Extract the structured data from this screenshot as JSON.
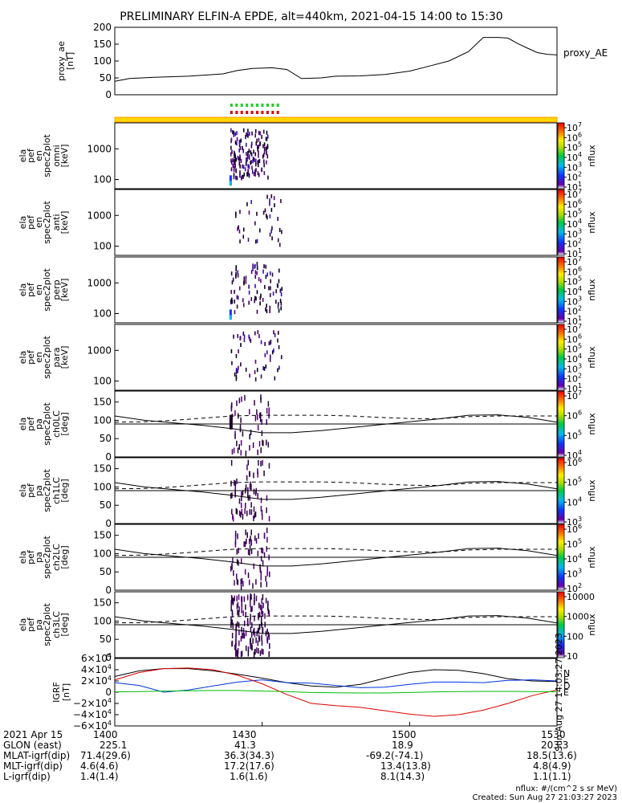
{
  "title": "PRELIMINARY ELFIN-A EPDE, alt=440km, 2021-04-15 14:00 to 15:30",
  "time_axis": {
    "start_minutes": 0,
    "end_minutes": 90
  },
  "proxy_ae": {
    "ylabel_lines": [
      "proxy_ae",
      "[nT]"
    ],
    "legend": "proxy_AE",
    "yticks": [
      "0",
      "50",
      "100",
      "150",
      "200"
    ],
    "ylim": [
      0,
      200
    ]
  },
  "science_flags": {
    "green": "#22cc22",
    "red": "#dd0000",
    "bar": "#ffd700",
    "bar_edge": "#ff8800"
  },
  "spectro_panels": [
    {
      "label_lines": [
        "ela",
        "pef",
        "en",
        "spec2plot",
        "omni",
        "[keV]"
      ],
      "yticks": [
        "100",
        "1000"
      ],
      "cbar_ticks": [
        "10^7",
        "10^6",
        "10^5",
        "10^4",
        "10^3",
        "10^2",
        "10^1"
      ],
      "cbar_label": "nflux"
    },
    {
      "label_lines": [
        "ela",
        "pef",
        "en",
        "spec2plot",
        "anti",
        "[keV]"
      ],
      "yticks": [
        "100",
        "1000"
      ],
      "cbar_ticks": [
        "10^7",
        "10^6",
        "10^5",
        "10^4",
        "10^3",
        "10^2",
        "10^1"
      ],
      "cbar_label": "nflux"
    },
    {
      "label_lines": [
        "ela",
        "pef",
        "en",
        "spec2plot",
        "perp",
        "[keV]"
      ],
      "yticks": [
        "100",
        "1000"
      ],
      "cbar_ticks": [
        "10^7",
        "10^6",
        "10^5",
        "10^4",
        "10^3",
        "10^2",
        "10^1"
      ],
      "cbar_label": "nflux"
    },
    {
      "label_lines": [
        "ela",
        "pef",
        "en",
        "spec2plot",
        "para",
        "[keV]"
      ],
      "yticks": [
        "100",
        "1000"
      ],
      "cbar_ticks": [
        "10^7",
        "10^6",
        "10^5",
        "10^4",
        "10^3",
        "10^2",
        "10^1"
      ],
      "cbar_label": "nflux"
    }
  ],
  "pa_panels": [
    {
      "label_lines": [
        "ela",
        "pef",
        "pa",
        "spec2plot",
        "ch0LC",
        "[deg]"
      ],
      "yticks": [
        "0",
        "50",
        "100",
        "150"
      ],
      "cbar_ticks": [
        "10^7",
        "10^6",
        "10^5",
        "10^4"
      ],
      "cbar_label": "nflux"
    },
    {
      "label_lines": [
        "ela",
        "pef",
        "pa",
        "spec2plot",
        "ch1LC",
        "[deg]"
      ],
      "yticks": [
        "0",
        "50",
        "100",
        "150"
      ],
      "cbar_ticks": [
        "10^6",
        "10^5",
        "10^4",
        "10^3"
      ],
      "cbar_label": "nflux"
    },
    {
      "label_lines": [
        "ela",
        "pef",
        "pa",
        "spec2plot",
        "ch2LC",
        "[deg]"
      ],
      "yticks": [
        "0",
        "50",
        "100",
        "150"
      ],
      "cbar_ticks": [
        "10^6",
        "10^5",
        "10^4",
        "10^3",
        "10^2"
      ],
      "cbar_label": "nflux"
    },
    {
      "label_lines": [
        "ela",
        "pef",
        "pa",
        "spec2plot",
        "ch3LC",
        "[deg]"
      ],
      "yticks": [
        "0",
        "50",
        "100",
        "150"
      ],
      "cbar_ticks": [
        "10000",
        "1000",
        "100",
        "10"
      ],
      "cbar_label": "nflux"
    }
  ],
  "igrf_panel": {
    "label_lines": [
      "IGRF",
      "[nT]"
    ],
    "yticks": [
      "6×10^4",
      "4×10^4",
      "2×10^4",
      "0",
      "−2×10^4",
      "−4×10^4",
      "−6×10^4"
    ],
    "legend": [
      "N",
      "E",
      "D",
      "E"
    ],
    "timestamp": "Sun Aug 27 14:03:27 2023"
  },
  "footer": {
    "rows": [
      {
        "label": "2021 Apr 15",
        "values": [
          "1400",
          "1430",
          "1500",
          "1530"
        ]
      },
      {
        "label": "GLON (east)",
        "values": [
          "225.1",
          "41.3",
          "18.9",
          "203.3"
        ]
      },
      {
        "label": "MLAT-igrf(dip)",
        "values": [
          "71.4(29.6)",
          "36.3(34.3)",
          "-69.2(-74.1)",
          "18.5(13.6)"
        ]
      },
      {
        "label": "MLT-igrf(dip)",
        "values": [
          "4.6(4.6)",
          "17.2(17.6)",
          "13.4(13.8)",
          "4.8(4.9)"
        ]
      },
      {
        "label": "L-igrf(dip)",
        "values": [
          "1.4(1.4)",
          "1.6(1.6)",
          "8.1(14.3)",
          "1.1(1.1)"
        ]
      }
    ],
    "units_note": "nflux: #/(cm^2 s sr MeV)",
    "created_note": "Created: Sun Aug 27 21:03:27 2023"
  },
  "chart_data": [
    {
      "type": "line",
      "title": "PRELIMINARY ELFIN-A EPDE, alt=440km, 2021-04-15 14:00 to 15:30",
      "ylabel": "proxy_ae [nT]",
      "ylim": [
        0,
        200
      ],
      "series": [
        {
          "name": "proxy_AE",
          "x": [
            0,
            3,
            8,
            15,
            22,
            25,
            28,
            32,
            35,
            38,
            42,
            45,
            50,
            55,
            60,
            64,
            68,
            72,
            75,
            78,
            80,
            82,
            84,
            86,
            88,
            90
          ],
          "y": [
            40,
            48,
            52,
            55,
            62,
            72,
            78,
            80,
            75,
            48,
            50,
            55,
            56,
            60,
            70,
            85,
            100,
            128,
            170,
            170,
            168,
            152,
            138,
            125,
            120,
            118
          ]
        }
      ]
    },
    {
      "type": "heatmap",
      "ylabel": "energy [keV]",
      "y_scale": "log",
      "ylim": [
        50,
        7000
      ],
      "colorbar": "nflux",
      "colorbar_range": [
        10,
        10000000
      ],
      "active_time_minutes": [
        23.5,
        34
      ]
    },
    {
      "type": "line",
      "ylabel": "pa [deg]",
      "ylim": [
        0,
        180
      ],
      "series": [
        {
          "x": [
            0,
            6,
            12,
            18,
            24,
            30,
            36,
            42,
            48,
            54,
            60,
            66,
            72,
            78,
            84,
            90
          ],
          "y": [
            112,
            100,
            93,
            86,
            77,
            66,
            66,
            72,
            80,
            88,
            96,
            104,
            114,
            115,
            108,
            95
          ]
        },
        {
          "x": [
            0,
            6,
            12,
            18,
            24,
            30,
            36,
            42,
            48,
            54,
            60,
            66,
            72,
            78,
            84,
            90
          ],
          "y": [
            95,
            96,
            100,
            106,
            112,
            114,
            114,
            114,
            112,
            108,
            105,
            104,
            110,
            112,
            112,
            112
          ]
        },
        {
          "x": [
            0,
            90
          ],
          "y": [
            90,
            90
          ]
        }
      ]
    },
    {
      "type": "line",
      "ylabel": "IGRF [nT]",
      "ylim": [
        -60000,
        60000
      ],
      "series": [
        {
          "x": [
            0,
            5,
            10,
            15,
            20,
            25,
            30,
            35,
            40,
            45,
            50,
            55,
            60,
            65,
            70,
            75,
            80,
            85,
            90
          ],
          "y": [
            28000,
            38000,
            42000,
            42000,
            38000,
            32000,
            25000,
            17000,
            11000,
            9000,
            14000,
            25000,
            35000,
            40000,
            39000,
            33000,
            24000,
            20000,
            19000
          ]
        },
        {
          "x": [
            0,
            5,
            10,
            15,
            20,
            25,
            30,
            35,
            40,
            45,
            50,
            55,
            60,
            65,
            70,
            75,
            80,
            85,
            90
          ],
          "y": [
            17000,
            12000,
            0,
            4000,
            11000,
            18000,
            22000,
            17000,
            16000,
            12000,
            8000,
            9000,
            14000,
            18000,
            18000,
            17000,
            21000,
            22000,
            20000
          ]
        },
        {
          "x": [
            0,
            5,
            10,
            15,
            20,
            25,
            30,
            35,
            40,
            45,
            50,
            55,
            60,
            65,
            70,
            75,
            80,
            85,
            90
          ],
          "y": [
            22000,
            35000,
            42000,
            43000,
            40000,
            30000,
            15000,
            -4000,
            -20000,
            -24000,
            -27000,
            -33000,
            -39000,
            -43000,
            -40000,
            -32000,
            -20000,
            -6000,
            4000
          ]
        },
        {
          "x": [
            0,
            5,
            10,
            15,
            20,
            25,
            30,
            35,
            40,
            45,
            50,
            55,
            60,
            65,
            70,
            75,
            80,
            85,
            90
          ],
          "y": [
            500,
            1000,
            2000,
            2500,
            3000,
            3000,
            2000,
            1000,
            -500,
            -1000,
            -1500,
            -1500,
            -500,
            500,
            1000,
            1500,
            1500,
            1000,
            800
          ]
        }
      ]
    }
  ]
}
